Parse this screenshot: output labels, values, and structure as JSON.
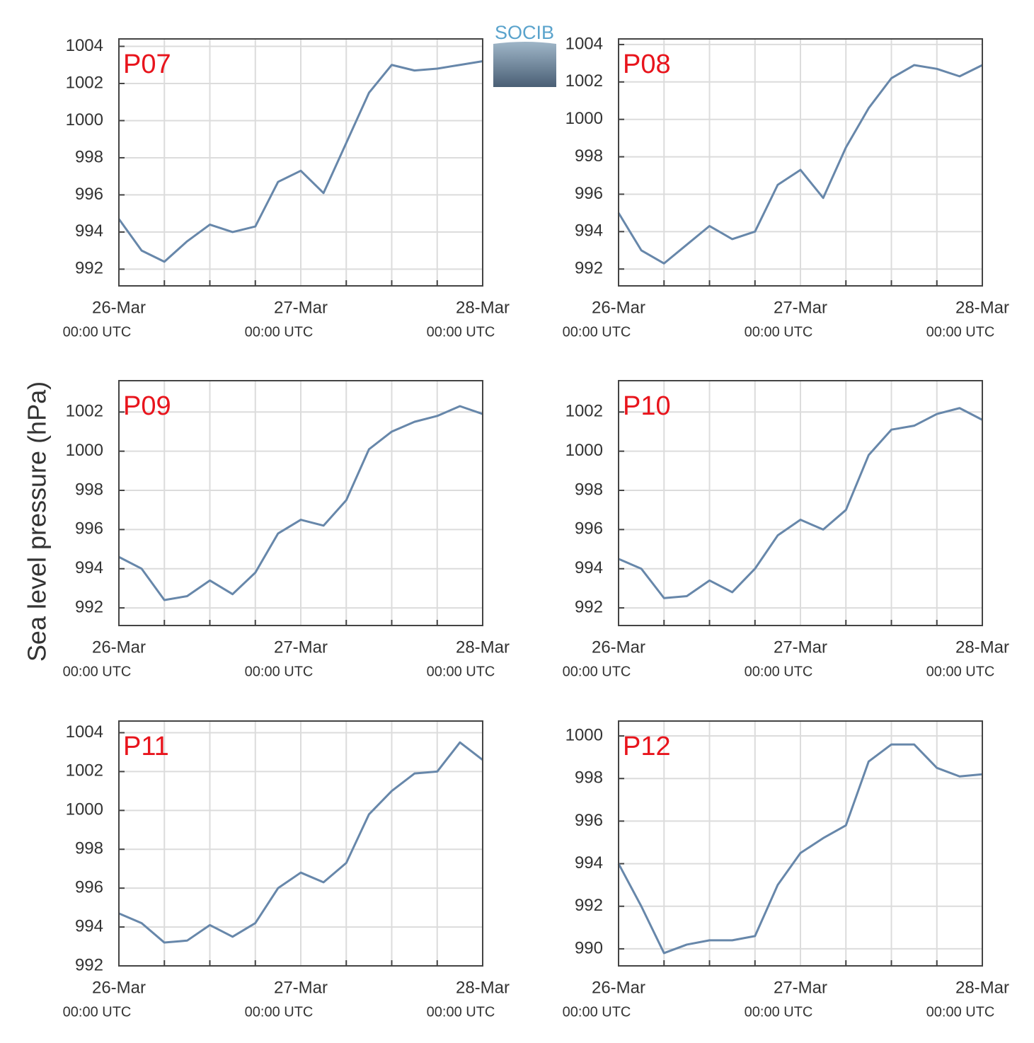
{
  "figure": {
    "ylabel": "Sea level pressure (hPa)",
    "logo": "SOCIB"
  },
  "chart_data": [
    {
      "type": "line",
      "title": "P07",
      "color": "#6787aa",
      "grid": true,
      "x": [
        "26-Mar 00:00",
        "26-Mar 03:00",
        "26-Mar 06:00",
        "26-Mar 09:00",
        "26-Mar 12:00",
        "26-Mar 15:00",
        "26-Mar 18:00",
        "26-Mar 21:00",
        "27-Mar 00:00",
        "27-Mar 03:00",
        "27-Mar 06:00",
        "27-Mar 09:00",
        "27-Mar 12:00",
        "27-Mar 15:00",
        "27-Mar 18:00",
        "27-Mar 21:00",
        "28-Mar 00:00"
      ],
      "values": [
        994.7,
        993.0,
        992.4,
        993.5,
        994.4,
        994.0,
        994.3,
        996.7,
        997.3,
        996.1,
        998.8,
        1001.5,
        1003.0,
        1002.7,
        1002.8,
        1003.0,
        1003.2
      ],
      "ylim": [
        991.1,
        1004.4
      ],
      "yticks": [
        992,
        994,
        996,
        998,
        1000,
        1002,
        1004
      ],
      "xticks": [
        {
          "value": "26-Mar 00:00",
          "label": "26-Mar",
          "sublabel": "00:00 UTC"
        },
        {
          "value": "27-Mar 00:00",
          "label": "27-Mar",
          "sublabel": "00:00 UTC"
        },
        {
          "value": "28-Mar 00:00",
          "label": "28-Mar",
          "sublabel": "00:00 UTC"
        }
      ],
      "xminor": [
        "26-Mar 06:00",
        "26-Mar 12:00",
        "26-Mar 18:00",
        "27-Mar 06:00",
        "27-Mar 12:00",
        "27-Mar 18:00"
      ]
    },
    {
      "type": "line",
      "title": "P08",
      "color": "#6787aa",
      "grid": true,
      "x": [
        "26-Mar 00:00",
        "26-Mar 03:00",
        "26-Mar 06:00",
        "26-Mar 09:00",
        "26-Mar 12:00",
        "26-Mar 15:00",
        "26-Mar 18:00",
        "26-Mar 21:00",
        "27-Mar 00:00",
        "27-Mar 03:00",
        "27-Mar 06:00",
        "27-Mar 09:00",
        "27-Mar 12:00",
        "27-Mar 15:00",
        "27-Mar 18:00",
        "27-Mar 21:00",
        "28-Mar 00:00"
      ],
      "values": [
        995.0,
        993.0,
        992.3,
        993.3,
        994.3,
        993.6,
        994.0,
        996.5,
        997.3,
        995.8,
        998.5,
        1000.6,
        1002.2,
        1002.9,
        1002.7,
        1002.3,
        1002.9
      ],
      "ylim": [
        991.1,
        1004.3
      ],
      "yticks": [
        992,
        994,
        996,
        998,
        1000,
        1002,
        1004
      ],
      "xticks": [
        {
          "value": "26-Mar 00:00",
          "label": "26-Mar",
          "sublabel": "00:00 UTC"
        },
        {
          "value": "27-Mar 00:00",
          "label": "27-Mar",
          "sublabel": "00:00 UTC"
        },
        {
          "value": "28-Mar 00:00",
          "label": "28-Mar",
          "sublabel": "00:00 UTC"
        }
      ],
      "xminor": [
        "26-Mar 06:00",
        "26-Mar 12:00",
        "26-Mar 18:00",
        "27-Mar 06:00",
        "27-Mar 12:00",
        "27-Mar 18:00"
      ]
    },
    {
      "type": "line",
      "title": "P09",
      "color": "#6787aa",
      "grid": true,
      "x": [
        "26-Mar 00:00",
        "26-Mar 03:00",
        "26-Mar 06:00",
        "26-Mar 09:00",
        "26-Mar 12:00",
        "26-Mar 15:00",
        "26-Mar 18:00",
        "26-Mar 21:00",
        "27-Mar 00:00",
        "27-Mar 03:00",
        "27-Mar 06:00",
        "27-Mar 09:00",
        "27-Mar 12:00",
        "27-Mar 15:00",
        "27-Mar 18:00",
        "27-Mar 21:00",
        "28-Mar 00:00"
      ],
      "values": [
        994.6,
        994.0,
        992.4,
        992.6,
        993.4,
        992.7,
        993.8,
        995.8,
        996.5,
        996.2,
        997.5,
        1000.1,
        1001.0,
        1001.5,
        1001.8,
        1002.3,
        1001.9
      ],
      "ylim": [
        991.1,
        1003.6
      ],
      "yticks": [
        992,
        994,
        996,
        998,
        1000,
        1002
      ],
      "xticks": [
        {
          "value": "26-Mar 00:00",
          "label": "26-Mar",
          "sublabel": "00:00 UTC"
        },
        {
          "value": "27-Mar 00:00",
          "label": "27-Mar",
          "sublabel": "00:00 UTC"
        },
        {
          "value": "28-Mar 00:00",
          "label": "28-Mar",
          "sublabel": "00:00 UTC"
        }
      ],
      "xminor": [
        "26-Mar 06:00",
        "26-Mar 12:00",
        "26-Mar 18:00",
        "27-Mar 06:00",
        "27-Mar 12:00",
        "27-Mar 18:00"
      ]
    },
    {
      "type": "line",
      "title": "P10",
      "color": "#6787aa",
      "grid": true,
      "x": [
        "26-Mar 00:00",
        "26-Mar 03:00",
        "26-Mar 06:00",
        "26-Mar 09:00",
        "26-Mar 12:00",
        "26-Mar 15:00",
        "26-Mar 18:00",
        "26-Mar 21:00",
        "27-Mar 00:00",
        "27-Mar 03:00",
        "27-Mar 06:00",
        "27-Mar 09:00",
        "27-Mar 12:00",
        "27-Mar 15:00",
        "27-Mar 18:00",
        "27-Mar 21:00",
        "28-Mar 00:00"
      ],
      "values": [
        994.5,
        994.0,
        992.5,
        992.6,
        993.4,
        992.8,
        994.0,
        995.7,
        996.5,
        996.0,
        997.0,
        999.8,
        1001.1,
        1001.3,
        1001.9,
        1002.2,
        1001.6
      ],
      "ylim": [
        991.1,
        1003.6
      ],
      "yticks": [
        992,
        994,
        996,
        998,
        1000,
        1002
      ],
      "xticks": [
        {
          "value": "26-Mar 00:00",
          "label": "26-Mar",
          "sublabel": "00:00 UTC"
        },
        {
          "value": "27-Mar 00:00",
          "label": "27-Mar",
          "sublabel": "00:00 UTC"
        },
        {
          "value": "28-Mar 00:00",
          "label": "28-Mar",
          "sublabel": "00:00 UTC"
        }
      ],
      "xminor": [
        "26-Mar 06:00",
        "26-Mar 12:00",
        "26-Mar 18:00",
        "27-Mar 06:00",
        "27-Mar 12:00",
        "27-Mar 18:00"
      ]
    },
    {
      "type": "line",
      "title": "P11",
      "color": "#6787aa",
      "grid": true,
      "x": [
        "26-Mar 00:00",
        "26-Mar 03:00",
        "26-Mar 06:00",
        "26-Mar 09:00",
        "26-Mar 12:00",
        "26-Mar 15:00",
        "26-Mar 18:00",
        "26-Mar 21:00",
        "27-Mar 00:00",
        "27-Mar 03:00",
        "27-Mar 06:00",
        "27-Mar 09:00",
        "27-Mar 12:00",
        "27-Mar 15:00",
        "27-Mar 18:00",
        "27-Mar 21:00",
        "28-Mar 00:00"
      ],
      "values": [
        994.7,
        994.2,
        993.2,
        993.3,
        994.1,
        993.5,
        994.2,
        996.0,
        996.8,
        996.3,
        997.3,
        999.8,
        1001.0,
        1001.9,
        1002.0,
        1003.5,
        1002.6
      ],
      "ylim": [
        992,
        1004.6
      ],
      "yticks": [
        992,
        994,
        996,
        998,
        1000,
        1002,
        1004
      ],
      "xticks": [
        {
          "value": "26-Mar 00:00",
          "label": "26-Mar",
          "sublabel": "00:00 UTC"
        },
        {
          "value": "27-Mar 00:00",
          "label": "27-Mar",
          "sublabel": "00:00 UTC"
        },
        {
          "value": "28-Mar 00:00",
          "label": "28-Mar",
          "sublabel": "00:00 UTC"
        }
      ],
      "xminor": [
        "26-Mar 06:00",
        "26-Mar 12:00",
        "26-Mar 18:00",
        "27-Mar 06:00",
        "27-Mar 12:00",
        "27-Mar 18:00"
      ]
    },
    {
      "type": "line",
      "title": "P12",
      "color": "#6787aa",
      "grid": true,
      "x": [
        "26-Mar 00:00",
        "26-Mar 03:00",
        "26-Mar 06:00",
        "26-Mar 09:00",
        "26-Mar 12:00",
        "26-Mar 15:00",
        "26-Mar 18:00",
        "26-Mar 21:00",
        "27-Mar 00:00",
        "27-Mar 03:00",
        "27-Mar 06:00",
        "27-Mar 09:00",
        "27-Mar 12:00",
        "27-Mar 15:00",
        "27-Mar 18:00",
        "27-Mar 21:00",
        "28-Mar 00:00"
      ],
      "values": [
        994.0,
        992.0,
        989.8,
        990.2,
        990.4,
        990.4,
        990.6,
        993.0,
        994.5,
        995.2,
        995.8,
        998.8,
        999.6,
        999.6,
        998.5,
        998.1,
        998.2
      ],
      "ylim": [
        989.2,
        1000.7
      ],
      "yticks": [
        990,
        992,
        994,
        996,
        998,
        1000
      ],
      "xticks": [
        {
          "value": "26-Mar 00:00",
          "label": "26-Mar",
          "sublabel": "00:00 UTC"
        },
        {
          "value": "27-Mar 00:00",
          "label": "27-Mar",
          "sublabel": "00:00 UTC"
        },
        {
          "value": "28-Mar 00:00",
          "label": "28-Mar",
          "sublabel": "00:00 UTC"
        }
      ],
      "xminor": [
        "26-Mar 06:00",
        "26-Mar 12:00",
        "26-Mar 18:00",
        "27-Mar 06:00",
        "27-Mar 12:00",
        "27-Mar 18:00"
      ]
    }
  ]
}
